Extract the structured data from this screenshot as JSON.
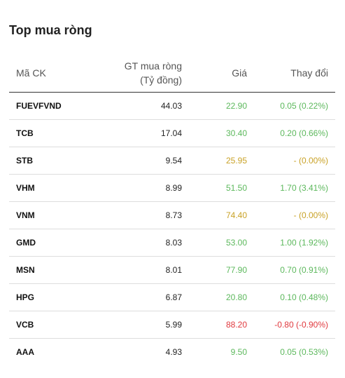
{
  "widget": {
    "title": "Top mua ròng"
  },
  "columns": {
    "code": "Mã CK",
    "value_line1": "GT mua ròng",
    "value_line2": "(Tỷ đồng)",
    "price": "Giá",
    "change": "Thay đổi"
  },
  "rows": [
    {
      "code": "FUEVFVND",
      "value": "44.03",
      "price": "22.90",
      "change": "0.05 (0.22%)",
      "trend": "up"
    },
    {
      "code": "TCB",
      "value": "17.04",
      "price": "30.40",
      "change": "0.20 (0.66%)",
      "trend": "up"
    },
    {
      "code": "STB",
      "value": "9.54",
      "price": "25.95",
      "change": "- (0.00%)",
      "trend": "ref"
    },
    {
      "code": "VHM",
      "value": "8.99",
      "price": "51.50",
      "change": "1.70 (3.41%)",
      "trend": "up"
    },
    {
      "code": "VNM",
      "value": "8.73",
      "price": "74.40",
      "change": "- (0.00%)",
      "trend": "ref"
    },
    {
      "code": "GMD",
      "value": "8.03",
      "price": "53.00",
      "change": "1.00 (1.92%)",
      "trend": "up"
    },
    {
      "code": "MSN",
      "value": "8.01",
      "price": "77.90",
      "change": "0.70 (0.91%)",
      "trend": "up"
    },
    {
      "code": "HPG",
      "value": "6.87",
      "price": "20.80",
      "change": "0.10 (0.48%)",
      "trend": "up"
    },
    {
      "code": "VCB",
      "value": "5.99",
      "price": "88.20",
      "change": "-0.80 (-0.90%)",
      "trend": "down"
    },
    {
      "code": "AAA",
      "value": "4.93",
      "price": "9.50",
      "change": "0.05 (0.53%)",
      "trend": "up"
    }
  ],
  "colors": {
    "up": "#5cb85c",
    "ref": "#c9a227",
    "down": "#e0393e"
  }
}
